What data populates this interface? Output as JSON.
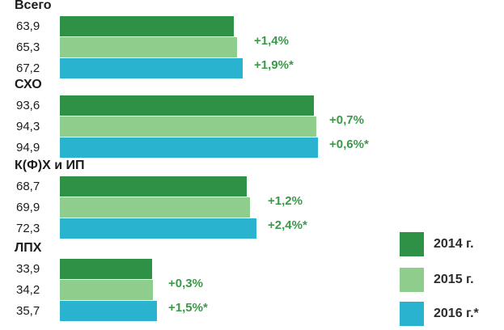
{
  "chart_data": {
    "type": "bar",
    "orientation": "horizontal",
    "groups": [
      {
        "name": "Всего",
        "values": [
          63.9,
          65.3,
          67.2
        ],
        "labels": [
          "63,9",
          "65,3",
          "67,2"
        ],
        "changes": [
          "+1,4%",
          "+1,9%*"
        ]
      },
      {
        "name": "СХО",
        "values": [
          93.6,
          94.3,
          94.9
        ],
        "labels": [
          "93,6",
          "94,3",
          "94,9"
        ],
        "changes": [
          "+0,7%",
          "+0,6%*"
        ]
      },
      {
        "name": "К(Ф)Х и ИП",
        "values": [
          68.7,
          69.9,
          72.3
        ],
        "labels": [
          "68,7",
          "69,9",
          "72,3"
        ],
        "changes": [
          "+1,2%",
          "+2,4%*"
        ]
      },
      {
        "name": "ЛПХ",
        "values": [
          33.9,
          34.2,
          35.7
        ],
        "labels": [
          "33,9",
          "34,2",
          "35,7"
        ],
        "changes": [
          "+0,3%",
          "+1,5%*"
        ]
      }
    ],
    "series": [
      {
        "name": "2014 г.",
        "color": "#2e9146"
      },
      {
        "name": "2015 г.",
        "color": "#8fcd8c"
      },
      {
        "name": "2016 г.*",
        "color": "#2ab3cf"
      }
    ],
    "legend_position": "bottom-right",
    "value_axis_range": [
      0,
      100
    ],
    "grid": false
  }
}
